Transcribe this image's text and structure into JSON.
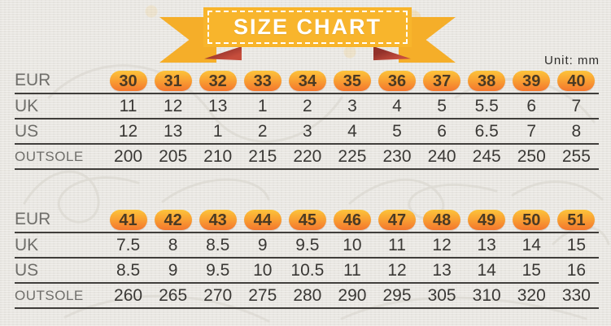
{
  "banner": {
    "title": "SIZE CHART"
  },
  "unit_label": "Unit:  mm",
  "colors": {
    "ribbon_yellow": "#f8b52c",
    "fold_red_dark": "#92312a",
    "fold_red_light": "#c64d3c",
    "badge_top": "#fcc33b",
    "badge_bottom": "#f3762e",
    "paper_background": "#e9e7e2",
    "text_dark": "#3a3835",
    "label_gray": "#6f6e6a"
  },
  "tables": [
    {
      "rows": [
        {
          "label": "EUR",
          "badges": true,
          "values": [
            "30",
            "31",
            "32",
            "33",
            "34",
            "35",
            "36",
            "37",
            "38",
            "39",
            "40"
          ]
        },
        {
          "label": "UK",
          "badges": false,
          "values": [
            "11",
            "12",
            "13",
            "1",
            "2",
            "3",
            "4",
            "5",
            "5.5",
            "6",
            "7"
          ]
        },
        {
          "label": "US",
          "badges": false,
          "values": [
            "12",
            "13",
            "1",
            "2",
            "3",
            "4",
            "5",
            "6",
            "6.5",
            "7",
            "8"
          ]
        },
        {
          "label": "OUTSOLE",
          "badges": false,
          "values": [
            "200",
            "205",
            "210",
            "215",
            "220",
            "225",
            "230",
            "240",
            "245",
            "250",
            "255"
          ]
        }
      ]
    },
    {
      "rows": [
        {
          "label": "EUR",
          "badges": true,
          "values": [
            "41",
            "42",
            "43",
            "44",
            "45",
            "46",
            "47",
            "48",
            "49",
            "50",
            "51"
          ]
        },
        {
          "label": "UK",
          "badges": false,
          "values": [
            "7.5",
            "8",
            "8.5",
            "9",
            "9.5",
            "10",
            "11",
            "12",
            "13",
            "14",
            "15"
          ]
        },
        {
          "label": "US",
          "badges": false,
          "values": [
            "8.5",
            "9",
            "9.5",
            "10",
            "10.5",
            "11",
            "12",
            "13",
            "14",
            "15",
            "16"
          ]
        },
        {
          "label": "OUTSOLE",
          "badges": false,
          "values": [
            "260",
            "265",
            "270",
            "275",
            "280",
            "290",
            "295",
            "305",
            "310",
            "320",
            "330"
          ]
        }
      ]
    }
  ],
  "chart_data": [
    {
      "type": "table",
      "title": "SIZE CHART",
      "unit": "mm",
      "row_headers": [
        "EUR",
        "UK",
        "US",
        "OUTSOLE"
      ],
      "rows": {
        "EUR": [
          30,
          31,
          32,
          33,
          34,
          35,
          36,
          37,
          38,
          39,
          40
        ],
        "UK": [
          11,
          12,
          13,
          1,
          2,
          3,
          4,
          5,
          5.5,
          6,
          7
        ],
        "US": [
          12,
          13,
          1,
          2,
          3,
          4,
          5,
          6,
          6.5,
          7,
          8
        ],
        "OUTSOLE": [
          200,
          205,
          210,
          215,
          220,
          225,
          230,
          240,
          245,
          250,
          255
        ]
      }
    },
    {
      "type": "table",
      "title": "SIZE CHART",
      "unit": "mm",
      "row_headers": [
        "EUR",
        "UK",
        "US",
        "OUTSOLE"
      ],
      "rows": {
        "EUR": [
          41,
          42,
          43,
          44,
          45,
          46,
          47,
          48,
          49,
          50,
          51
        ],
        "UK": [
          7.5,
          8,
          8.5,
          9,
          9.5,
          10,
          11,
          12,
          13,
          14,
          15
        ],
        "US": [
          8.5,
          9,
          9.5,
          10,
          10.5,
          11,
          12,
          13,
          14,
          15,
          16
        ],
        "OUTSOLE": [
          260,
          265,
          270,
          275,
          280,
          290,
          295,
          305,
          310,
          320,
          330
        ]
      }
    }
  ]
}
